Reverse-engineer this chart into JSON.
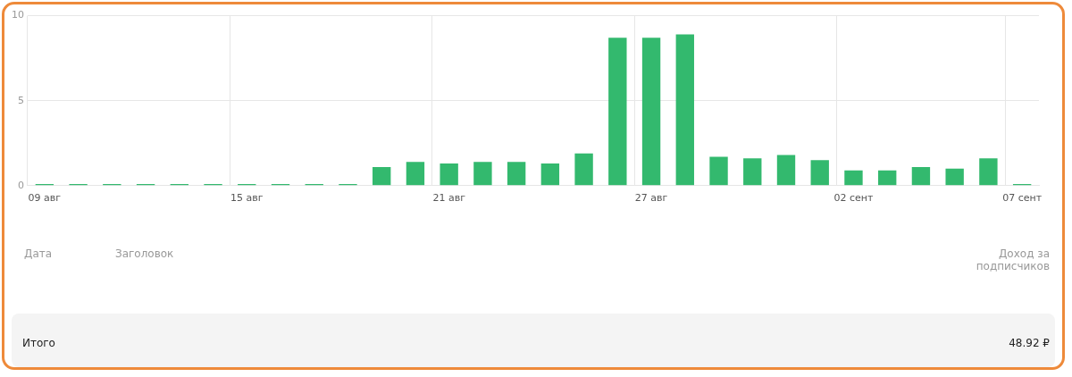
{
  "chart_data": {
    "type": "bar",
    "categories": [
      "09 авг",
      null,
      null,
      null,
      null,
      null,
      "15 авг",
      null,
      null,
      null,
      null,
      null,
      "21 авг",
      null,
      null,
      null,
      null,
      null,
      "27 авг",
      null,
      null,
      null,
      null,
      null,
      "02 сент",
      null,
      null,
      null,
      null,
      "07 сент"
    ],
    "values": [
      0.1,
      0.1,
      0.1,
      0.1,
      0.1,
      0.1,
      0.1,
      0.1,
      0.1,
      0.1,
      1.1,
      1.4,
      1.3,
      1.4,
      1.4,
      1.3,
      1.9,
      8.7,
      8.7,
      8.9,
      1.7,
      1.6,
      1.8,
      1.5,
      0.9,
      0.9,
      1.1,
      1.0,
      1.6,
      0.1
    ],
    "color": "#33b96e",
    "ylim": [
      0,
      10
    ],
    "yticks": [
      0,
      5,
      10
    ],
    "grid": true,
    "annotations": [
      "Дата",
      "Заголовок",
      "Доход за подписчиков",
      "Итого",
      "48.92 ₽"
    ]
  }
}
